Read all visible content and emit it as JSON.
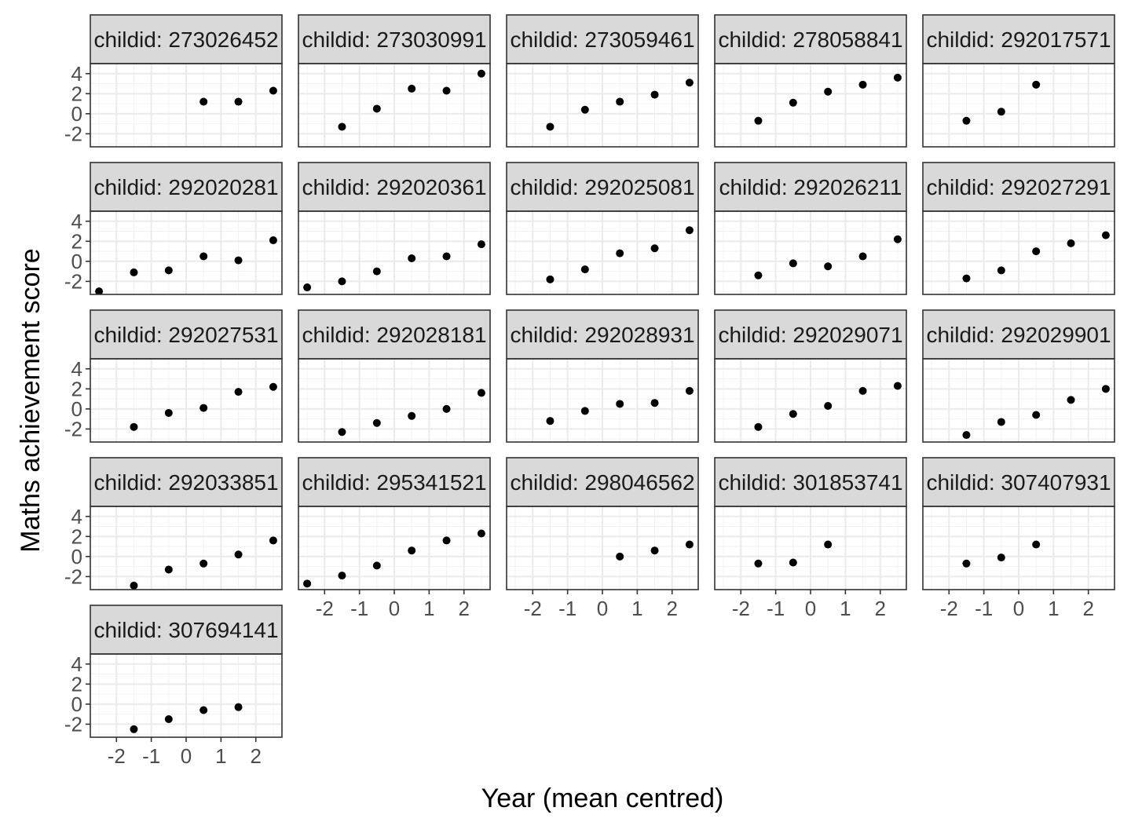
{
  "chart_data": {
    "type": "scatter",
    "facet_layout": "wrap",
    "xlabel": "Year (mean centred)",
    "ylabel": "Maths achievement score",
    "xlim": [
      -2.75,
      2.75
    ],
    "ylim": [
      -3.3,
      5.0
    ],
    "x_ticks": [
      "-2",
      "-1",
      "0",
      "1",
      "2"
    ],
    "y_ticks": [
      "-2",
      "0",
      "2",
      "4"
    ],
    "grid": true,
    "point_color": "#000000",
    "strip_fill": "#d9d9d9",
    "panels": [
      {
        "label": "childid: 273026452",
        "x": [
          0.5,
          1.5,
          2.5
        ],
        "y": [
          1.2,
          1.2,
          2.3
        ]
      },
      {
        "label": "childid: 273030991",
        "x": [
          -1.5,
          -0.5,
          0.5,
          1.5,
          2.5
        ],
        "y": [
          -1.3,
          0.5,
          2.5,
          2.3,
          4.0
        ]
      },
      {
        "label": "childid: 273059461",
        "x": [
          -1.5,
          -0.5,
          0.5,
          1.5,
          2.5
        ],
        "y": [
          -1.3,
          0.4,
          1.2,
          1.9,
          3.1
        ]
      },
      {
        "label": "childid: 278058841",
        "x": [
          -1.5,
          -0.5,
          0.5,
          1.5,
          2.5
        ],
        "y": [
          -0.7,
          1.1,
          2.2,
          2.9,
          3.6
        ]
      },
      {
        "label": "childid: 292017571",
        "x": [
          -1.5,
          -0.5,
          0.5
        ],
        "y": [
          -0.7,
          0.2,
          2.9
        ]
      },
      {
        "label": "childid: 292020281",
        "x": [
          -2.5,
          -1.5,
          -0.5,
          0.5,
          1.5,
          2.5
        ],
        "y": [
          -3.0,
          -1.1,
          -0.9,
          0.5,
          0.1,
          2.1
        ]
      },
      {
        "label": "childid: 292020361",
        "x": [
          -2.5,
          -1.5,
          -0.5,
          0.5,
          1.5,
          2.5
        ],
        "y": [
          -2.6,
          -2.0,
          -1.0,
          0.3,
          0.5,
          1.7
        ]
      },
      {
        "label": "childid: 292025081",
        "x": [
          -1.5,
          -0.5,
          0.5,
          1.5,
          2.5
        ],
        "y": [
          -1.8,
          -0.8,
          0.8,
          1.3,
          3.1
        ]
      },
      {
        "label": "childid: 292026211",
        "x": [
          -1.5,
          -0.5,
          0.5,
          1.5,
          2.5
        ],
        "y": [
          -1.4,
          -0.2,
          -0.5,
          0.5,
          2.2
        ]
      },
      {
        "label": "childid: 292027291",
        "x": [
          -1.5,
          -0.5,
          0.5,
          1.5,
          2.5
        ],
        "y": [
          -1.7,
          -0.9,
          1.0,
          1.8,
          2.6
        ]
      },
      {
        "label": "childid: 292027531",
        "x": [
          -1.5,
          -0.5,
          0.5,
          1.5,
          2.5
        ],
        "y": [
          -1.8,
          -0.4,
          0.1,
          1.7,
          2.2
        ]
      },
      {
        "label": "childid: 292028181",
        "x": [
          -1.5,
          -0.5,
          0.5,
          1.5,
          2.5
        ],
        "y": [
          -2.3,
          -1.4,
          -0.7,
          0.0,
          1.6
        ]
      },
      {
        "label": "childid: 292028931",
        "x": [
          -1.5,
          -0.5,
          0.5,
          1.5,
          2.5
        ],
        "y": [
          -1.2,
          -0.2,
          0.5,
          0.6,
          1.8
        ]
      },
      {
        "label": "childid: 292029071",
        "x": [
          -1.5,
          -0.5,
          0.5,
          1.5,
          2.5
        ],
        "y": [
          -1.8,
          -0.5,
          0.3,
          1.8,
          2.3
        ]
      },
      {
        "label": "childid: 292029901",
        "x": [
          -1.5,
          -0.5,
          0.5,
          1.5,
          2.5
        ],
        "y": [
          -2.6,
          -1.3,
          -0.6,
          0.9,
          2.0
        ]
      },
      {
        "label": "childid: 292033851",
        "x": [
          -1.5,
          -0.5,
          0.5,
          1.5,
          2.5
        ],
        "y": [
          -2.9,
          -1.3,
          -0.7,
          0.2,
          1.6
        ]
      },
      {
        "label": "childid: 295341521",
        "x": [
          -2.5,
          -1.5,
          -0.5,
          0.5,
          1.5,
          2.5
        ],
        "y": [
          -2.7,
          -1.9,
          -0.9,
          0.6,
          1.6,
          2.3
        ]
      },
      {
        "label": "childid: 298046562",
        "x": [
          0.5,
          1.5,
          2.5
        ],
        "y": [
          0.0,
          0.6,
          1.2
        ]
      },
      {
        "label": "childid: 301853741",
        "x": [
          -1.5,
          -0.5,
          0.5
        ],
        "y": [
          -0.7,
          -0.6,
          1.2
        ]
      },
      {
        "label": "childid: 307407931",
        "x": [
          -1.5,
          -0.5,
          0.5
        ],
        "y": [
          -0.7,
          -0.1,
          1.2
        ]
      },
      {
        "label": "childid: 307694141",
        "x": [
          -1.5,
          -0.5,
          0.5,
          1.5
        ],
        "y": [
          -2.5,
          -1.5,
          -0.6,
          -0.3
        ]
      }
    ]
  }
}
